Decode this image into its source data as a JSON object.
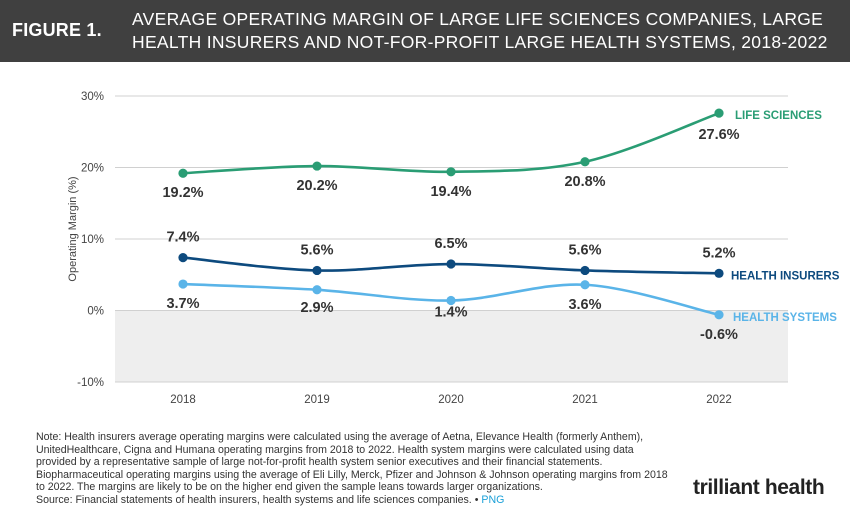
{
  "figure": {
    "label": "FIGURE 1.",
    "title_line1": "AVERAGE OPERATING MARGIN OF LARGE LIFE SCIENCES COMPANIES, LARGE",
    "title_line2": "HEALTH INSURERS AND NOT-FOR-PROFIT LARGE HEALTH SYSTEMS, 2018-2022"
  },
  "chart_data": {
    "type": "line",
    "x": [
      "2018",
      "2019",
      "2020",
      "2021",
      "2022"
    ],
    "ylabel": "Operating Margin (%)",
    "ylim": [
      -10,
      30
    ],
    "yticks": [
      30,
      20,
      10,
      0,
      -10
    ],
    "ytick_labels": [
      "30%",
      "20%",
      "10%",
      "0%",
      "-10%"
    ],
    "negative_region_shaded": true,
    "series": [
      {
        "name": "LIFE SCIENCES",
        "color": "#2a9d74",
        "values": [
          19.2,
          20.2,
          19.4,
          20.8,
          27.6
        ],
        "labels": [
          "19.2%",
          "20.2%",
          "19.4%",
          "20.8%",
          "27.6%"
        ]
      },
      {
        "name": "HEALTH INSURERS",
        "color": "#0d4a7e",
        "values": [
          7.4,
          5.6,
          6.5,
          5.6,
          5.2
        ],
        "labels": [
          "7.4%",
          "5.6%",
          "6.5%",
          "5.6%",
          "5.2%"
        ]
      },
      {
        "name": "HEALTH SYSTEMS",
        "color": "#5ab4e8",
        "values": [
          3.7,
          2.9,
          1.4,
          3.6,
          -0.6
        ],
        "labels": [
          "3.7%",
          "2.9%",
          "1.4%",
          "3.6%",
          "-0.6%"
        ]
      }
    ]
  },
  "note": {
    "text": "Note: Health insurers average operating margins were calculated using the average of Aetna, Elevance Health (formerly Anthem), UnitedHealthcare, Cigna and Humana operating margins from 2018 to 2022. Health system margins were calculated using data provided by a representative sample of large not-for-profit health system senior executives and their financial statements. Biopharmaceutical operating margins using the average of Eli Lilly, Merck, Pfizer and Johnson & Johnson operating margins from 2018 to 2022. The margins are likely to be on the higher end given the sample leans towards larger organizations.",
    "source": "Source: Financial statements of health insurers, health systems and life sciences companies.",
    "separator": "•",
    "png_label": "PNG"
  },
  "logo": {
    "text": "trilliant health"
  }
}
